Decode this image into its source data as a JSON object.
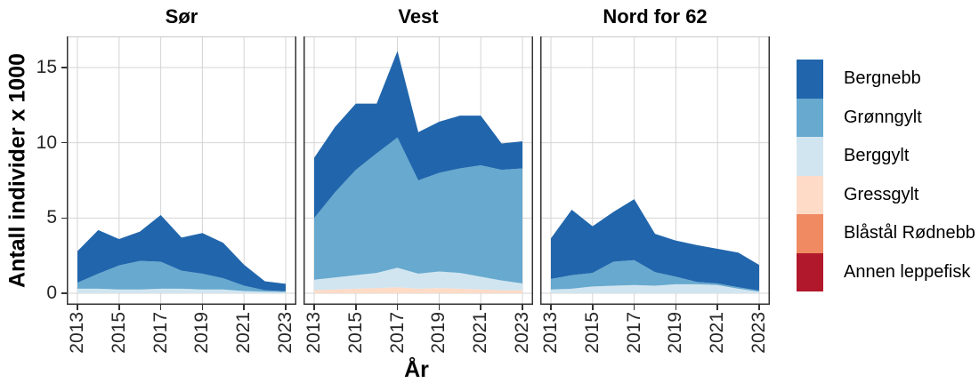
{
  "legend": {
    "items": [
      {
        "label": "Bergnebb",
        "color": "#2166AC"
      },
      {
        "label": "Grønngylt",
        "color": "#67A9CF"
      },
      {
        "label": "Berggylt",
        "color": "#D1E5F0"
      },
      {
        "label": "Gressgylt",
        "color": "#FDDBC7"
      },
      {
        "label": "Blåstål Rødnebb",
        "color": "#EF8A62"
      },
      {
        "label": "Annen leppefisk",
        "color": "#B2182B"
      }
    ]
  },
  "chart_data": {
    "type": "area",
    "stacked": true,
    "x_label": "År",
    "y_label": "Antall individer x 1000",
    "x": [
      2013,
      2014,
      2015,
      2016,
      2017,
      2018,
      2019,
      2020,
      2021,
      2022,
      2023
    ],
    "x_breaks": [
      2013,
      2015,
      2017,
      2019,
      2021,
      2023
    ],
    "y_breaks": [
      0,
      5,
      10,
      15
    ],
    "ylim": [
      0,
      17
    ],
    "x_tick_angle": 90,
    "grid": true,
    "legend_position": "right",
    "panels": [
      {
        "label": "Sør",
        "series": [
          {
            "name": "Bergnebb",
            "values": [
              2.1,
              2.9,
              1.75,
              1.95,
              3.1,
              2.2,
              2.7,
              2.35,
              1.4,
              0.6,
              0.5
            ]
          },
          {
            "name": "Grønngylt",
            "values": [
              0.4,
              1.0,
              1.6,
              1.9,
              1.8,
              1.2,
              1.05,
              0.75,
              0.35,
              0.1,
              0.05
            ]
          },
          {
            "name": "Berggylt",
            "values": [
              0.3,
              0.3,
              0.25,
              0.25,
              0.3,
              0.3,
              0.25,
              0.25,
              0.15,
              0.1,
              0.08
            ]
          },
          {
            "name": "Gressgylt",
            "values": [
              0,
              0,
              0,
              0,
              0,
              0,
              0,
              0,
              0,
              0,
              0
            ]
          },
          {
            "name": "Blåstål Rødnebb",
            "values": [
              0,
              0,
              0,
              0,
              0,
              0,
              0,
              0,
              0,
              0,
              0
            ]
          },
          {
            "name": "Annen leppefisk",
            "values": [
              0,
              0,
              0,
              0,
              0,
              0,
              0,
              0,
              0,
              0,
              0
            ]
          }
        ]
      },
      {
        "label": "Vest",
        "series": [
          {
            "name": "Bergnebb",
            "values": [
              4.0,
              4.35,
              4.4,
              3.3,
              5.75,
              3.2,
              3.4,
              3.5,
              3.3,
              1.75,
              1.8
            ]
          },
          {
            "name": "Grønngylt",
            "values": [
              4.1,
              5.65,
              7.0,
              7.95,
              8.65,
              6.2,
              6.55,
              6.95,
              7.4,
              7.35,
              7.65
            ]
          },
          {
            "name": "Berggylt",
            "values": [
              0.7,
              0.8,
              0.9,
              1.0,
              1.3,
              1.0,
              1.1,
              1.05,
              0.85,
              0.65,
              0.45
            ]
          },
          {
            "name": "Gressgylt",
            "values": [
              0.2,
              0.25,
              0.3,
              0.35,
              0.4,
              0.3,
              0.35,
              0.3,
              0.25,
              0.2,
              0.2
            ]
          },
          {
            "name": "Blåstål Rødnebb",
            "values": [
              0,
              0,
              0,
              0,
              0,
              0,
              0,
              0,
              0,
              0,
              0
            ]
          },
          {
            "name": "Annen leppefisk",
            "values": [
              0,
              0,
              0,
              0,
              0,
              0,
              0,
              0,
              0,
              0,
              0
            ]
          }
        ]
      },
      {
        "label": "Nord for 62",
        "series": [
          {
            "name": "Bergnebb",
            "values": [
              2.7,
              4.35,
              3.1,
              3.3,
              4.05,
              2.55,
              2.4,
              2.45,
              2.3,
              2.3,
              1.7
            ]
          },
          {
            "name": "Grønngylt",
            "values": [
              0.7,
              0.9,
              0.9,
              1.6,
              1.65,
              0.9,
              0.5,
              0.15,
              0.1,
              0.1,
              0.08
            ]
          },
          {
            "name": "Berggylt",
            "values": [
              0.25,
              0.3,
              0.45,
              0.5,
              0.55,
              0.5,
              0.6,
              0.6,
              0.55,
              0.3,
              0.1
            ]
          },
          {
            "name": "Gressgylt",
            "values": [
              0,
              0,
              0,
              0,
              0,
              0,
              0,
              0,
              0,
              0,
              0
            ]
          },
          {
            "name": "Blåstål Rødnebb",
            "values": [
              0,
              0,
              0,
              0,
              0,
              0,
              0,
              0,
              0,
              0,
              0
            ]
          },
          {
            "name": "Annen leppefisk",
            "values": [
              0,
              0,
              0,
              0,
              0,
              0,
              0,
              0,
              0,
              0,
              0
            ]
          }
        ]
      }
    ]
  }
}
